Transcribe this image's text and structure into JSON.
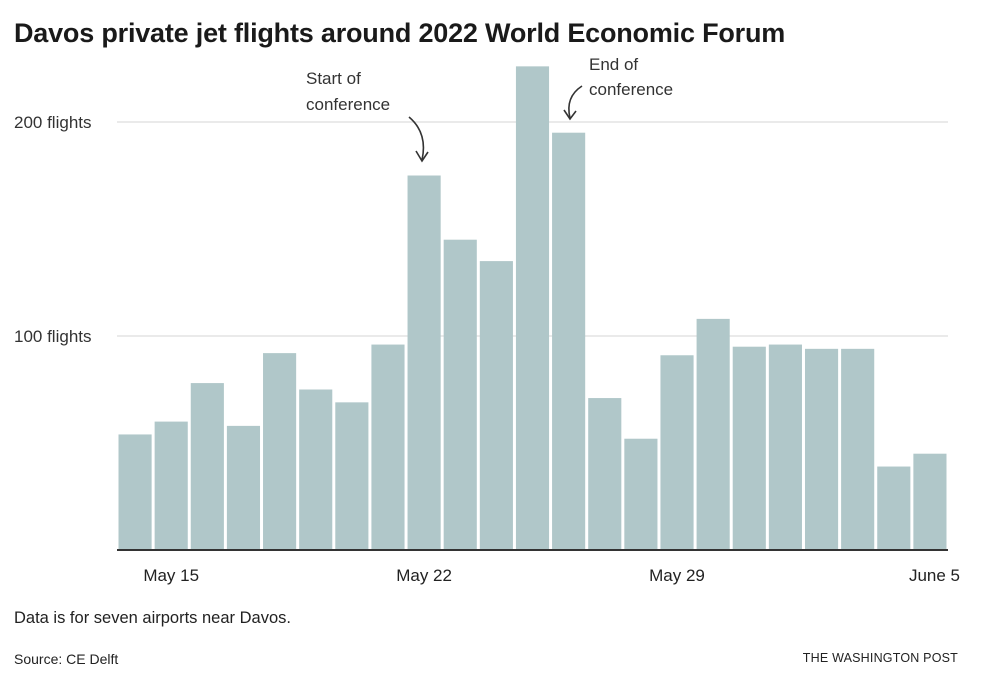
{
  "chart_data": {
    "type": "bar",
    "title": "Davos private jet flights around 2022 World Economic Forum",
    "xlabel": "",
    "ylabel": "",
    "ylim": [
      0,
      230
    ],
    "yticks": [
      {
        "value": 100,
        "label": "100 flights"
      },
      {
        "value": 200,
        "label": "200 flights"
      }
    ],
    "xticks": [
      {
        "index": 1,
        "label": "May 15"
      },
      {
        "index": 8,
        "label": "May 22"
      },
      {
        "index": 15,
        "label": "May 29"
      },
      {
        "index": 22,
        "label": "June 5"
      }
    ],
    "categories": [
      "May 14",
      "May 15",
      "May 16",
      "May 17",
      "May 18",
      "May 19",
      "May 20",
      "May 21",
      "May 22",
      "May 23",
      "May 24",
      "May 25",
      "May 26",
      "May 27",
      "May 28",
      "May 29",
      "May 30",
      "May 31",
      "June 1",
      "June 2",
      "June 3",
      "June 4",
      "June 5"
    ],
    "values": [
      54,
      60,
      78,
      58,
      92,
      75,
      69,
      96,
      175,
      145,
      135,
      226,
      195,
      71,
      52,
      91,
      108,
      95,
      96,
      94,
      94,
      39,
      45
    ],
    "bar_color": "#b0c7c9",
    "grid": true,
    "annotations": [
      {
        "line1": "Start of",
        "line2": "conference",
        "index": 8
      },
      {
        "line1": "End of",
        "line2": "conference",
        "index": 12
      }
    ]
  },
  "footer": {
    "note": "Data is for seven airports near Davos.",
    "source": "Source: CE Delft",
    "credit": "THE WASHINGTON POST"
  }
}
